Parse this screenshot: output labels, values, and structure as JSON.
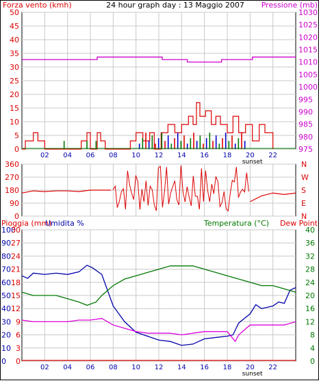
{
  "colors": {
    "wind": "#dd0000",
    "pressure": "#cc00cc",
    "direction": "#dd0000",
    "humidity": "#0000aa",
    "temperature": "#007700",
    "dewpoint": "#dd00dd",
    "rain": "#dd0000",
    "grid": "#c8c8c8",
    "wind_bar_blue": "#0000cc",
    "wind_bar_green": "#007700"
  },
  "chart_data": [
    {
      "type": "line",
      "panel": "wind-pressure",
      "title": "24 hour graph day : 13 Maggio 2007",
      "left_axis_label": "Forza vento (kmh)",
      "right_axis_label": "Pressione (mb)",
      "x_ticks": [
        "02",
        "04",
        "06",
        "08",
        "10",
        "12",
        "14",
        "16",
        "18",
        "20",
        "22"
      ],
      "x_marker": "sunset",
      "left_ylim": [
        0,
        50
      ],
      "left_ticks": [
        "0",
        "5",
        "10",
        "15",
        "20",
        "25",
        "30",
        "35",
        "40",
        "45",
        "50"
      ],
      "right_ylim": [
        975,
        1030
      ],
      "right_ticks": [
        "975",
        "980",
        "985",
        "990",
        "995",
        "1000",
        "1005",
        "1010",
        "1015",
        "1020",
        "1025",
        "1030"
      ],
      "grid": true,
      "series": [
        {
          "name": "Pressione (mb)",
          "x": [
            0,
            6.6,
            12.3,
            14.5,
            17.5,
            20.2,
            24
          ],
          "y": [
            1011,
            1012,
            1011,
            1010,
            1011,
            1012,
            1012
          ]
        },
        {
          "name": "Forza vento (kmh)",
          "x": [
            0,
            0.3,
            1,
            1.4,
            2,
            3,
            5.2,
            5.7,
            6,
            6.6,
            6.9,
            7.3,
            8,
            9.5,
            10,
            10.6,
            11.2,
            11.6,
            12.2,
            12.8,
            13.4,
            14,
            14.6,
            15,
            15.3,
            15.6,
            16.1,
            16.6,
            17,
            17.4,
            18,
            18.5,
            19,
            19.6,
            20.2,
            20.8,
            21.3,
            22
          ],
          "y": [
            0,
            3,
            6,
            3,
            0,
            0,
            3,
            6,
            0,
            6,
            3,
            0,
            0,
            3,
            6,
            3,
            6,
            0,
            6,
            9,
            6,
            9,
            12,
            9,
            17,
            12,
            14,
            9,
            12,
            9,
            6,
            12,
            6,
            9,
            3,
            9,
            6,
            0
          ]
        }
      ]
    },
    {
      "type": "scatter",
      "panel": "wind-direction",
      "ylim": [
        0,
        360
      ],
      "left_ticks": [
        "0",
        "90",
        "180",
        "270",
        "360"
      ],
      "right_ticks": [
        "N",
        "E",
        "S",
        "W",
        "N"
      ],
      "x_segments_early": [
        [
          0,
          160
        ],
        [
          1,
          175
        ],
        [
          2,
          170
        ],
        [
          3,
          175
        ],
        [
          4,
          175
        ],
        [
          5,
          170
        ],
        [
          6,
          180
        ],
        [
          7.8,
          180
        ]
      ],
      "x_range_volatile": [
        8,
        20
      ],
      "late": [
        [
          20,
          100
        ],
        [
          21,
          140
        ],
        [
          22,
          160
        ],
        [
          23,
          150
        ],
        [
          24,
          160
        ]
      ]
    },
    {
      "type": "line",
      "panel": "rain-humidity-temperature",
      "left_axis_label": "Pioggia (mm)",
      "second_left_label": "Umidita %",
      "right_axis_label": "Temperatura (°C)",
      "right_label_2": "Dew Point",
      "x_ticks": [
        "02",
        "04",
        "06",
        "08",
        "10",
        "12",
        "14",
        "16",
        "18",
        "20",
        "22"
      ],
      "x_marker": "sunset",
      "rain_ticks": [
        "0",
        "3",
        "6",
        "9",
        "12",
        "15",
        "18",
        "21",
        "24",
        "27",
        "30"
      ],
      "humidity_ticks": [
        "0",
        "10",
        "20",
        "30",
        "40",
        "50",
        "60",
        "70",
        "80",
        "90",
        "100"
      ],
      "temperature_ticks": [
        "0",
        "4",
        "8",
        "12",
        "16",
        "20",
        "24",
        "28",
        "32",
        "36",
        "40"
      ],
      "humidity_ylim": [
        0,
        100
      ],
      "temperature_ylim": [
        0,
        40
      ],
      "series": [
        {
          "name": "Umidita %",
          "x": [
            0,
            0.5,
            1,
            2,
            3,
            4,
            5,
            5.7,
            6.2,
            7,
            8,
            9,
            10,
            11,
            12,
            13,
            14,
            15,
            16,
            17,
            18,
            18.5,
            19,
            20,
            20.5,
            21,
            22,
            22.5,
            23,
            23.5,
            24
          ],
          "y": [
            65,
            63,
            67,
            66,
            67,
            66,
            68,
            73,
            71,
            66,
            42,
            30,
            22,
            19,
            16,
            15,
            12,
            13,
            17,
            18,
            19,
            20,
            29,
            36,
            43,
            40,
            42,
            45,
            44,
            54,
            56
          ]
        },
        {
          "name": "Temperatura (°C)",
          "x": [
            0,
            1,
            2,
            3,
            4,
            5,
            5.7,
            6.5,
            7,
            8,
            9,
            10,
            11,
            12,
            13,
            14,
            15,
            16,
            17,
            18,
            19,
            20,
            21,
            22,
            23,
            24
          ],
          "y": [
            21,
            20,
            20,
            20,
            19,
            18,
            17,
            18,
            20,
            23,
            25,
            26,
            27,
            28,
            29,
            29,
            29,
            28,
            27,
            26,
            25,
            24,
            23,
            23,
            22,
            21
          ]
        },
        {
          "name": "Dew Point",
          "x": [
            0,
            1,
            2,
            3,
            4,
            5,
            6,
            7,
            8,
            9,
            10,
            11,
            12,
            13,
            14,
            15,
            16,
            17,
            18,
            18.7,
            19,
            20,
            21,
            22,
            23,
            24
          ],
          "y": [
            12.5,
            12,
            12,
            12,
            12,
            12.5,
            12.5,
            13,
            11,
            10,
            9,
            8.5,
            8.5,
            8.5,
            8,
            8.5,
            9,
            9,
            9,
            6,
            8,
            11,
            11,
            11,
            11,
            12
          ]
        }
      ]
    }
  ]
}
